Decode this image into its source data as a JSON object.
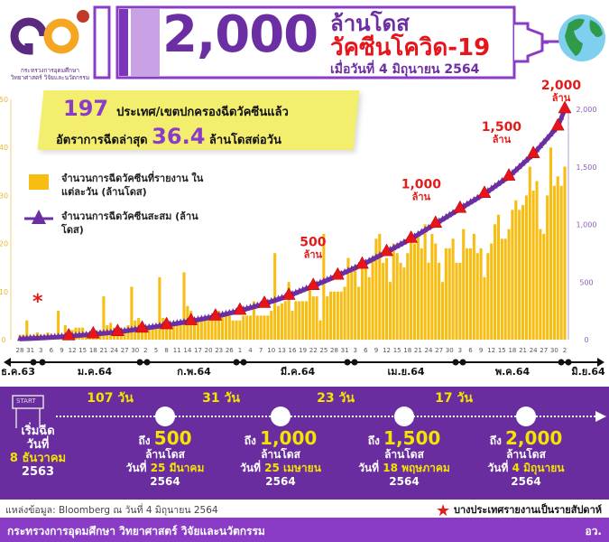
{
  "header": {
    "big_number": "2,000",
    "line1": "ล้านโดส",
    "line2": "วัคซีนโควิด-19",
    "line3": "เมื่อวันที่ 4 มิถุนายน 2564",
    "logo_text": "กระทรวงการอุดมศึกษา วิทยาศาสตร์ วิจัยและนวัตกรรม",
    "logo_sub": "Ministry of Higher Education, Science, Research and Innovation",
    "logo_mark": "อว"
  },
  "banner": {
    "count": "197",
    "count_text": "ประเทศ/เขตปกครองฉีดวัคซีนแล้ว",
    "rate_prefix": "อัตราการฉีดล่าสุด",
    "rate": "36.4",
    "rate_suffix": "ล้านโดสต่อวัน"
  },
  "legend": {
    "bar": "จำนวนการฉีดวัคซีนที่รายงาน ในแต่ละวัน (ล้านโดส)",
    "line": "จำนวนการฉีดวัคซีนสะสม (ล้านโดส)"
  },
  "asterisk": "*",
  "chart_data": {
    "type": "bar+line",
    "ylim_left": [
      0,
      50
    ],
    "yticks_left": [
      "0",
      "10",
      "20",
      "30",
      "40",
      "50"
    ],
    "ylim_right": [
      0,
      2000
    ],
    "yticks_right": [
      "0",
      "500",
      "1,000",
      "1,500",
      "2,000"
    ],
    "colors": {
      "bar": "#f7bd12",
      "line": "#6b2fa3",
      "marker": "#e8141b"
    },
    "month_start_index": {
      "12": -27,
      "1": 4,
      "2": 35,
      "3": 63,
      "4": 94,
      "5": 124,
      "6": 155
    },
    "x_ticks": [
      {
        "m": "12",
        "days": [
          28,
          31
        ]
      },
      {
        "m": "1",
        "days": [
          3,
          6,
          9,
          12,
          15,
          18,
          21,
          24,
          27,
          30
        ]
      },
      {
        "m": "2",
        "days": [
          2,
          5,
          8,
          11,
          14,
          17,
          20,
          23,
          26
        ]
      },
      {
        "m": "3",
        "days": [
          1,
          4,
          7,
          10,
          13,
          16,
          19,
          22,
          25,
          28,
          31
        ]
      },
      {
        "m": "4",
        "days": [
          3,
          6,
          9,
          12,
          15,
          18,
          21,
          24,
          27,
          30
        ]
      },
      {
        "m": "5",
        "days": [
          3,
          6,
          9,
          12,
          15,
          18,
          21,
          24,
          27,
          30
        ]
      },
      {
        "m": "6",
        "days": [
          2
        ]
      }
    ],
    "months": [
      "ธ.ค.63",
      "ม.ค.64",
      "ก.พ.64",
      "มี.ค.64",
      "เม.ย.64",
      "พ.ค.64",
      "มิ.ย.64"
    ],
    "daily": [
      1,
      1,
      4,
      1,
      1,
      1.5,
      1,
      1,
      1.5,
      1,
      1,
      6,
      1,
      3,
      1,
      2,
      2.5,
      2.5,
      2.5,
      1.5,
      1.5,
      1,
      1.5,
      2,
      9,
      3,
      3.5,
      2.5,
      2.5,
      2.5,
      2,
      3,
      11,
      4,
      4.5,
      3.5,
      2.5,
      2.5,
      3,
      3,
      13,
      4.5,
      4,
      3.5,
      3,
      3,
      3,
      14,
      7,
      6,
      4,
      4,
      4.5,
      4.5,
      5,
      5,
      5,
      6,
      5.5,
      5,
      5,
      4,
      4,
      4,
      5,
      5,
      5,
      8,
      5,
      5,
      5,
      5,
      6,
      18,
      7,
      7.5,
      8,
      12,
      6,
      8,
      8,
      8,
      8,
      11,
      9,
      9,
      4,
      22,
      9,
      10,
      10,
      10,
      10,
      11,
      17,
      15,
      15,
      11,
      16,
      16,
      13,
      17,
      21,
      22,
      16,
      17,
      12,
      20,
      18,
      16,
      15,
      18,
      22,
      20,
      22,
      19,
      24,
      16,
      22,
      20,
      16,
      12,
      19,
      19,
      21,
      16,
      16,
      23,
      19,
      19,
      22,
      18,
      19,
      13,
      18,
      20,
      24,
      26,
      21,
      21,
      23,
      27,
      29,
      27,
      28,
      30,
      36,
      31,
      33,
      23,
      22,
      30,
      40,
      32,
      34,
      32,
      36
    ],
    "cumulative": [
      [
        0,
        5
      ],
      [
        7,
        15
      ],
      [
        14,
        28
      ],
      [
        21,
        45
      ],
      [
        28,
        65
      ],
      [
        35,
        95
      ],
      [
        42,
        125
      ],
      [
        49,
        160
      ],
      [
        56,
        200
      ],
      [
        63,
        250
      ],
      [
        70,
        310
      ],
      [
        77,
        380
      ],
      [
        84,
        465
      ],
      [
        91,
        555
      ],
      [
        98,
        650
      ],
      [
        105,
        760
      ],
      [
        112,
        875
      ],
      [
        119,
        1005
      ],
      [
        126,
        1135
      ],
      [
        133,
        1265
      ],
      [
        140,
        1415
      ],
      [
        147,
        1610
      ],
      [
        154,
        1850
      ],
      [
        156,
        2000
      ]
    ],
    "annotations": [
      {
        "label": "500",
        "unit": "ล้าน",
        "day": 87,
        "value": 500
      },
      {
        "label": "1,000",
        "unit": "ล้าน",
        "day": 118,
        "value": 1000
      },
      {
        "label": "1,500",
        "unit": "ล้าน",
        "day": 141,
        "value": 1500
      },
      {
        "label": "2,000",
        "unit": "ล้าน",
        "day": 156,
        "value": 2000
      }
    ]
  },
  "timeline": {
    "start_sign": "START",
    "intervals": [
      "107 วัน",
      "31 วัน",
      "23 วัน",
      "17 วัน"
    ],
    "start": {
      "l1": "เริ่มฉีด",
      "l2": "วันที่",
      "l3": "8 ธันวาคม",
      "l4": "2563"
    },
    "milestones": [
      {
        "pre": "ถึง",
        "num": "500",
        "unit": "ล้านโดส",
        "date_pre": "วันที่",
        "date": "25 มีนาคม",
        "year": "2564"
      },
      {
        "pre": "ถึง",
        "num": "1,000",
        "unit": "ล้านโดส",
        "date_pre": "วันที่",
        "date": "25 เมษายน",
        "year": "2564"
      },
      {
        "pre": "ถึง",
        "num": "1,500",
        "unit": "ล้านโดส",
        "date_pre": "วันที่",
        "date": "18 พฤษภาคม",
        "year": "2564"
      },
      {
        "pre": "ถึง",
        "num": "2,000",
        "unit": "ล้านโดส",
        "date_pre": "วันที่",
        "date": "4 มิถุนายน",
        "year": "2564"
      }
    ]
  },
  "source": "แหล่งข้อมูล: Bloomberg ณ วันที่ 4 มิถุนายน 2564",
  "note": "บางประเทศรายงานเป็นรายสัปดาห์",
  "footer": {
    "ministry": "กระทรวงการอุดมศึกษา วิทยาศาสตร์ วิจัยและนวัตกรรม",
    "abbr": "อว."
  }
}
